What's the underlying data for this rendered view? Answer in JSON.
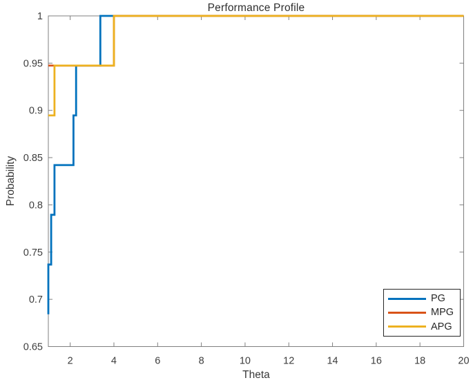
{
  "chart_data": {
    "type": "line",
    "subtype": "step-staircase",
    "title": "Performance Profile",
    "xlabel": "Theta",
    "ylabel": "Probability",
    "xlim": [
      1,
      20
    ],
    "ylim": [
      0.65,
      1
    ],
    "xticks": [
      2,
      4,
      6,
      8,
      10,
      12,
      14,
      16,
      18,
      20
    ],
    "xtick_labels": [
      "2",
      "4",
      "6",
      "8",
      "10",
      "12",
      "14",
      "16",
      "18",
      "20"
    ],
    "yticks": [
      0.65,
      0.7,
      0.75,
      0.8,
      0.85,
      0.9,
      0.95,
      1
    ],
    "ytick_labels": [
      "0.65",
      "0.7",
      "0.75",
      "0.8",
      "0.85",
      "0.9",
      "0.95",
      "1"
    ],
    "grid": false,
    "legend_position": "southeast",
    "axis_color": "#7f7f7f",
    "tick_label_color": "#3d3d3d",
    "line_width": 2.8,
    "series": [
      {
        "name": "PG",
        "color": "#0072BD",
        "points": [
          [
            1,
            0.6842
          ],
          [
            1,
            0.7368
          ],
          [
            1.13,
            0.7368
          ],
          [
            1.13,
            0.7895
          ],
          [
            1.28,
            0.7895
          ],
          [
            1.28,
            0.8421
          ],
          [
            2.15,
            0.8421
          ],
          [
            2.15,
            0.8947
          ],
          [
            2.27,
            0.8947
          ],
          [
            2.27,
            0.9474
          ],
          [
            3.38,
            0.9474
          ],
          [
            3.38,
            1
          ],
          [
            20,
            1
          ]
        ]
      },
      {
        "name": "MPG",
        "color": "#D95319",
        "points": [
          [
            1,
            0.9474
          ],
          [
            4,
            0.9474
          ],
          [
            4,
            1
          ],
          [
            20,
            1
          ]
        ]
      },
      {
        "name": "APG",
        "color": "#EDB120",
        "points": [
          [
            1,
            0.8947
          ],
          [
            1.28,
            0.8947
          ],
          [
            1.28,
            0.9474
          ],
          [
            4,
            0.9474
          ],
          [
            4,
            1
          ],
          [
            20,
            1
          ]
        ]
      }
    ]
  }
}
